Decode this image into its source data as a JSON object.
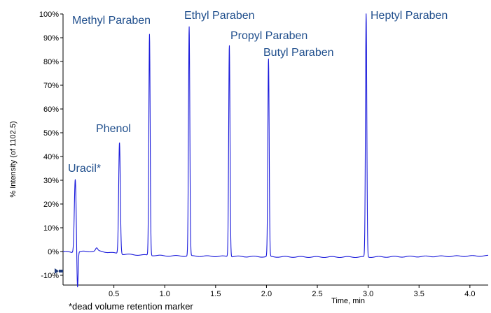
{
  "chart_data": {
    "type": "line",
    "title": "",
    "xlabel": "Time, min",
    "ylabel": "% Intensity (of 1102.5)",
    "xlim": [
      0.0,
      4.18
    ],
    "ylim": [
      -13,
      100
    ],
    "x_ticks": [
      0.5,
      1.0,
      1.5,
      2.0,
      2.5,
      3.0,
      3.5,
      4.0
    ],
    "x_tick_labels": [
      "0.5",
      "1.0",
      "1.5",
      "2.0",
      "2.5",
      "3.0",
      "3.5",
      "4.0"
    ],
    "y_ticks": [
      -10,
      0,
      10,
      20,
      30,
      40,
      50,
      60,
      70,
      80,
      90,
      100
    ],
    "y_tick_labels": [
      "-10%",
      "0%",
      "10%",
      "20%",
      "30%",
      "40%",
      "50%",
      "60%",
      "70%",
      "80%",
      "90%",
      "100%"
    ],
    "line_color": "#1a1adb",
    "label_color": "#1f4e8c",
    "grid": false,
    "peaks": [
      {
        "name": "Uracil*",
        "rt": 0.12,
        "height": 30.5
      },
      {
        "name": "Phenol",
        "rt": 0.555,
        "height": 46
      },
      {
        "name": "Methyl Paraben",
        "rt": 0.85,
        "height": 91.5
      },
      {
        "name": "Ethyl Paraben",
        "rt": 1.24,
        "height": 94.5
      },
      {
        "name": "Propyl Paraben",
        "rt": 1.635,
        "height": 87
      },
      {
        "name": "Butyl Paraben",
        "rt": 2.02,
        "height": 81
      },
      {
        "name": "Heptyl Paraben",
        "rt": 2.98,
        "height": 100
      }
    ],
    "baseline": [
      [
        0.0,
        0.0
      ],
      [
        0.1,
        -0.4
      ],
      [
        0.2,
        0.0
      ],
      [
        0.35,
        0.2
      ],
      [
        0.6,
        -1.2
      ],
      [
        1.0,
        -1.8
      ],
      [
        1.5,
        -2.0
      ],
      [
        2.0,
        -2.2
      ],
      [
        2.5,
        -2.3
      ],
      [
        3.0,
        -2.3
      ],
      [
        3.5,
        -2.1
      ],
      [
        4.0,
        -1.9
      ],
      [
        4.18,
        -1.8
      ]
    ],
    "footnote": "*dead volume retention marker"
  }
}
